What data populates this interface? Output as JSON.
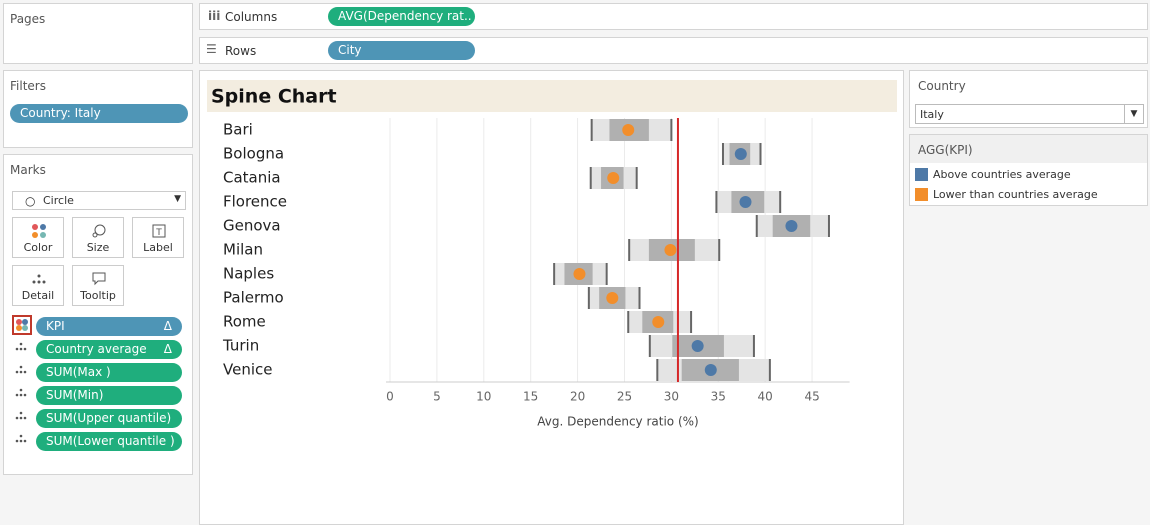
{
  "pages": {
    "title": "Pages"
  },
  "shelves": {
    "columns": {
      "label": "Columns",
      "pill": "AVG(Dependency rat.."
    },
    "rows": {
      "label": "Rows",
      "pill": "City"
    }
  },
  "filters": {
    "title": "Filters",
    "pills": [
      "Country: Italy"
    ]
  },
  "marks": {
    "title": "Marks",
    "mark_type": "Circle",
    "buttons": [
      "Color",
      "Size",
      "Label",
      "Detail",
      "Tooltip"
    ],
    "fields": [
      {
        "name": "KPI",
        "suffix": "Δ",
        "color": "#4e95b6"
      },
      {
        "name": "Country average",
        "suffix": "Δ",
        "color": "#1fae7d"
      },
      {
        "name": "SUM(Max )",
        "color": "#1fae7d"
      },
      {
        "name": "SUM(Min)",
        "color": "#1fae7d"
      },
      {
        "name": "SUM(Upper quantile)",
        "color": "#1fae7d"
      },
      {
        "name": "SUM(Lower quantile )",
        "color": "#1fae7d"
      }
    ]
  },
  "country_filter": {
    "title": "Country",
    "value": "Italy"
  },
  "legend": {
    "title": "AGG(KPI)",
    "items": [
      {
        "label": "Above countries average",
        "color": "#4e79a7"
      },
      {
        "label": "Lower than countries average",
        "color": "#f28e2b"
      }
    ]
  },
  "chart_data": {
    "type": "spine",
    "title": "Spine Chart",
    "x_label": "Avg. Dependency ratio (%)",
    "categories": [
      "Bari",
      "Bologna",
      "Catania",
      "Florence",
      "Genova",
      "Milan",
      "Naples",
      "Palermo",
      "Rome",
      "Turin",
      "Venice"
    ],
    "values": [
      25.4,
      37.4,
      23.8,
      37.9,
      42.8,
      29.9,
      20.2,
      23.7,
      28.6,
      32.8,
      34.2
    ],
    "point_colors": [
      "#f28e2b",
      "#4e79a7",
      "#f28e2b",
      "#4e79a7",
      "#4e79a7",
      "#f28e2b",
      "#f28e2b",
      "#f28e2b",
      "#f28e2b",
      "#4e79a7",
      "#4e79a7"
    ],
    "min": [
      21.5,
      35.5,
      21.4,
      34.8,
      39.1,
      25.5,
      17.5,
      21.2,
      25.4,
      27.7,
      28.5
    ],
    "lower_quantile": [
      23.4,
      36.2,
      22.5,
      36.4,
      40.8,
      27.6,
      18.6,
      22.3,
      26.9,
      30.1,
      31.1
    ],
    "upper_quantile": [
      27.6,
      38.4,
      24.9,
      39.9,
      44.8,
      32.5,
      21.6,
      25.1,
      30.2,
      35.6,
      37.2
    ],
    "max": [
      30.0,
      39.5,
      26.3,
      41.6,
      46.8,
      35.1,
      23.1,
      26.6,
      32.1,
      38.8,
      40.5
    ],
    "reference_line": 30.7,
    "reference_color": "#d62728",
    "range_color": "#e4e4e4",
    "quantile_color": "#b0b0b0",
    "edge_color": "#666666",
    "xlim": [
      0,
      49
    ],
    "xticks": [
      0,
      5,
      10,
      15,
      20,
      25,
      30,
      35,
      40,
      45
    ],
    "grid": true
  }
}
